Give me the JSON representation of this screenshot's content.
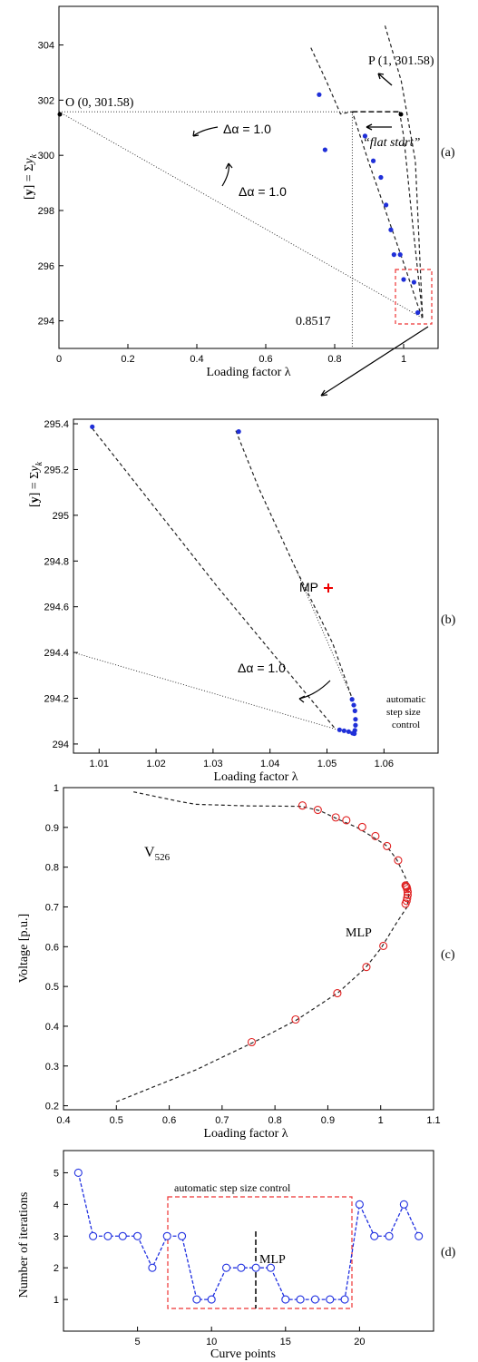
{
  "chart_data": [
    {
      "panel": "(a)",
      "type": "line",
      "xlabel": "Loading factor λ",
      "ylabel": "[y] = Σy_k",
      "xlim": [
        0,
        1.1
      ],
      "ylim": [
        293,
        305.4
      ],
      "xticks": [
        "0",
        "0.2",
        "0.4",
        "0.6",
        "0.8",
        "1"
      ],
      "yticks": [
        "294",
        "296",
        "298",
        "300",
        "302",
        "304"
      ],
      "annotations": {
        "origin": "O (0, 301.58)",
        "p": "P (1, 301.58)",
        "flat_start": "“flat start”",
        "delta1": "Δα = 1.0",
        "delta2": "Δα = 1.0",
        "xmark": "0.8517"
      },
      "series": [
        {
          "style": "dashed",
          "x": [
            0.988,
            1.0,
            1.01,
            1.022,
            1.035,
            1.046,
            1.053,
            1.055
          ],
          "y": [
            301.58,
            300.7,
            299.5,
            298.0,
            296.5,
            295.2,
            294.4,
            294.1
          ]
        },
        {
          "style": "dashed",
          "x": [
            0.731,
            0.779,
            0.817,
            0.851,
            0.9,
            0.95,
            1.0,
            1.04,
            1.055
          ],
          "y": [
            303.9,
            302.6,
            301.5,
            301.58,
            299.7,
            297.9,
            296.1,
            294.6,
            294.1
          ]
        },
        {
          "style": "dashed",
          "x": [
            0.946,
            0.993,
            1.034,
            1.055
          ],
          "y": [
            304.7,
            302.7,
            299.8,
            294.1
          ]
        },
        {
          "style": "dotted",
          "x": [
            0,
            1.055
          ],
          "y": [
            301.58,
            294.1
          ]
        },
        {
          "style": "dotted",
          "x": [
            0,
            0.851
          ],
          "y": [
            301.58,
            301.58
          ]
        },
        {
          "style": "dotted",
          "x": [
            0.851,
            0.851
          ],
          "y": [
            301.58,
            293.0
          ]
        },
        {
          "style": "dashed-thick",
          "x": [
            0.851,
            0.988
          ],
          "y": [
            301.58,
            301.58
          ]
        },
        {
          "style": "points",
          "x": [
            0.755,
            0.772,
            0.888,
            0.912,
            0.934,
            0.949,
            0.963,
            0.972,
            0.99,
            1.0,
            1.03,
            1.041
          ],
          "y": [
            302.2,
            300.2,
            300.7,
            299.8,
            299.2,
            298.2,
            297.3,
            296.4,
            296.4,
            295.5,
            295.4,
            294.3
          ]
        }
      ]
    },
    {
      "panel": "(b)",
      "type": "line",
      "xlabel": "Loading factor λ",
      "ylabel": "[y] = Σy_k",
      "xlim": [
        1.0055,
        1.0695
      ],
      "ylim": [
        293.96,
        295.42
      ],
      "xticks": [
        "1.01",
        "1.02",
        "1.03",
        "1.04",
        "1.05",
        "1.06"
      ],
      "yticks": [
        "294",
        "294.2",
        "294.4",
        "294.6",
        "294.8",
        "295",
        "295.2",
        "295.4"
      ],
      "annotations": {
        "mp": "MP",
        "delta": "Δα = 1.0",
        "auto1": "automatic",
        "auto2": "step size",
        "auto3": "control"
      },
      "mp_point": {
        "x": 1.0442,
        "y": 294.783
      },
      "series": [
        {
          "style": "dashed",
          "x": [
            1.0088,
            1.031,
            1.0515
          ],
          "y": [
            295.38,
            294.68,
            294.065
          ]
        },
        {
          "style": "dashed",
          "x": [
            1.034,
            1.038,
            1.0442,
            1.051,
            1.0544
          ],
          "y": [
            295.37,
            295.12,
            294.783,
            294.44,
            294.2
          ]
        },
        {
          "style": "dotted",
          "x": [
            1.0055,
            1.0515
          ],
          "y": [
            294.4,
            294.065
          ]
        },
        {
          "style": "dotted",
          "x": [
            1.0442,
            1.0544
          ],
          "y": [
            294.783,
            294.2
          ]
        },
        {
          "style": "points",
          "x": [
            1.0088,
            1.0345,
            1.0522,
            1.053,
            1.0538,
            1.0545,
            1.0548,
            1.0549,
            1.055,
            1.055,
            1.0549,
            1.0547,
            1.0544
          ],
          "y": [
            295.387,
            295.366,
            294.062,
            294.058,
            294.054,
            294.047,
            294.045,
            294.06,
            294.082,
            294.108,
            294.145,
            294.17,
            294.195
          ]
        }
      ]
    },
    {
      "panel": "(c)",
      "type": "line",
      "xlabel": "Loading factor λ",
      "ylabel": "Voltage [p.u.]",
      "xlim": [
        0.4,
        1.1
      ],
      "ylim": [
        0.19,
        1.0
      ],
      "xticks": [
        "0.4",
        "0.5",
        "0.6",
        "0.7",
        "0.8",
        "0.9",
        "1",
        "1.1"
      ],
      "yticks": [
        "0.2",
        "0.3",
        "0.4",
        "0.5",
        "0.6",
        "0.7",
        "0.8",
        "0.9",
        "1"
      ],
      "annotations": {
        "v": "V",
        "v_sub": "526",
        "mlp": "MLP"
      },
      "series": [
        {
          "style": "dashed",
          "x": [
            0.5,
            0.65,
            0.76,
            0.84,
            0.92,
            0.97,
            1.0,
            1.03,
            1.05,
            1.053,
            1.05,
            1.03,
            1.01,
            0.98,
            0.955,
            0.92,
            0.885,
            0.85,
            0.75,
            0.65,
            0.62,
            0.53
          ],
          "y": [
            0.21,
            0.29,
            0.36,
            0.415,
            0.485,
            0.545,
            0.595,
            0.66,
            0.7,
            0.73,
            0.765,
            0.82,
            0.855,
            0.88,
            0.9,
            0.92,
            0.942,
            0.953,
            0.954,
            0.958,
            0.965,
            0.99
          ]
        },
        {
          "style": "circles",
          "x": [
            0.756,
            0.839,
            0.918,
            0.973,
            1.005,
            1.047,
            1.049,
            1.05,
            1.051,
            1.051,
            1.05,
            1.049,
            1.048,
            1.047,
            1.033,
            1.012,
            0.99,
            0.965,
            0.935,
            0.915,
            0.881,
            0.852
          ],
          "y": [
            0.36,
            0.417,
            0.483,
            0.549,
            0.602,
            0.708,
            0.715,
            0.722,
            0.73,
            0.738,
            0.745,
            0.75,
            0.752,
            0.754,
            0.817,
            0.853,
            0.878,
            0.901,
            0.918,
            0.925,
            0.944,
            0.955
          ]
        }
      ]
    },
    {
      "panel": "(d)",
      "type": "line",
      "xlabel": "Curve points",
      "ylabel": "Number of iterations",
      "xlim": [
        0,
        25
      ],
      "ylim": [
        0,
        5.7
      ],
      "xticks": [
        "5",
        "10",
        "15",
        "20"
      ],
      "yticks": [
        "1",
        "2",
        "3",
        "4",
        "5"
      ],
      "annotations": {
        "box": "automatic step size control",
        "mlp": "MLP"
      },
      "series": [
        {
          "style": "circles-line",
          "x": [
            1,
            2,
            3,
            4,
            5,
            6,
            7,
            8,
            9,
            10,
            11,
            12,
            13,
            14,
            15,
            16,
            17,
            18,
            19,
            20,
            21,
            22,
            23,
            24
          ],
          "y": [
            5,
            3,
            3,
            3,
            3,
            2,
            3,
            3,
            1,
            1,
            2,
            2,
            2,
            2,
            1,
            1,
            1,
            1,
            1,
            4,
            3,
            3,
            4,
            3
          ]
        }
      ]
    }
  ]
}
